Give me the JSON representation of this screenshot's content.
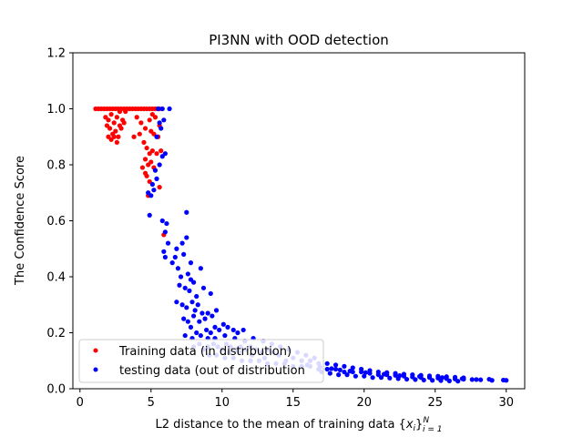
{
  "chart_data": {
    "type": "scatter",
    "title": "PI3NN with OOD detection",
    "xlabel": "L2 distance to the mean of training data {x_i}_{i=1}^N",
    "xlabel_parts": {
      "prefix": "L2 distance to the mean of training data {",
      "var": "x",
      "var_sub": "i",
      "close": "}",
      "sup": "N",
      "sub": "i = 1"
    },
    "ylabel": "The Confidence Score",
    "xlim": [
      -0.5,
      31.3
    ],
    "ylim": [
      0.0,
      1.2
    ],
    "xticks": [
      0,
      5,
      10,
      15,
      20,
      25,
      30
    ],
    "yticks": [
      0.0,
      0.2,
      0.4,
      0.6,
      0.8,
      1.0,
      1.2
    ],
    "xtick_labels": [
      "0",
      "5",
      "10",
      "15",
      "20",
      "25",
      "30"
    ],
    "ytick_labels": [
      "0.0",
      "0.2",
      "0.4",
      "0.6",
      "0.8",
      "1.0",
      "1.2"
    ],
    "grid": false,
    "legend_position": "lower-left",
    "series": [
      {
        "name": "Training data (in distribution)",
        "color": "#ff0000",
        "points": [
          [
            1.1,
            1.0
          ],
          [
            1.3,
            1.0
          ],
          [
            1.5,
            1.0
          ],
          [
            1.7,
            1.0
          ],
          [
            1.9,
            1.0
          ],
          [
            2.1,
            1.0
          ],
          [
            2.3,
            1.0
          ],
          [
            2.5,
            1.0
          ],
          [
            2.7,
            1.0
          ],
          [
            2.9,
            1.0
          ],
          [
            3.1,
            1.0
          ],
          [
            3.3,
            1.0
          ],
          [
            3.5,
            1.0
          ],
          [
            3.7,
            1.0
          ],
          [
            3.9,
            1.0
          ],
          [
            4.1,
            1.0
          ],
          [
            4.3,
            1.0
          ],
          [
            4.5,
            1.0
          ],
          [
            4.7,
            1.0
          ],
          [
            4.9,
            1.0
          ],
          [
            5.1,
            1.0
          ],
          [
            5.3,
            1.0
          ],
          [
            5.5,
            1.0
          ],
          [
            5.6,
            1.0
          ],
          [
            1.8,
            0.97
          ],
          [
            2.0,
            0.96
          ],
          [
            2.2,
            0.98
          ],
          [
            2.4,
            0.95
          ],
          [
            2.6,
            0.97
          ],
          [
            2.8,
            0.94
          ],
          [
            3.0,
            0.96
          ],
          [
            2.1,
            0.93
          ],
          [
            2.3,
            0.91
          ],
          [
            2.5,
            0.92
          ],
          [
            2.7,
            0.9
          ],
          [
            2.9,
            0.93
          ],
          [
            2.2,
            0.89
          ],
          [
            2.6,
            0.88
          ],
          [
            2.4,
            0.9
          ],
          [
            3.1,
            0.95
          ],
          [
            3.2,
            0.99
          ],
          [
            2.0,
            0.9
          ],
          [
            1.9,
            0.94
          ],
          [
            2.8,
            0.99
          ],
          [
            4.0,
            0.97
          ],
          [
            4.3,
            0.95
          ],
          [
            4.6,
            0.93
          ],
          [
            4.9,
            0.96
          ],
          [
            5.1,
            0.98
          ],
          [
            5.3,
            0.97
          ],
          [
            4.2,
            0.91
          ],
          [
            3.8,
            0.9
          ],
          [
            5.0,
            0.92
          ],
          [
            4.5,
            0.88
          ],
          [
            4.7,
            0.86
          ],
          [
            4.9,
            0.84
          ],
          [
            5.1,
            0.85
          ],
          [
            5.4,
            0.84
          ],
          [
            4.6,
            0.82
          ],
          [
            4.8,
            0.8
          ],
          [
            5.0,
            0.81
          ],
          [
            4.4,
            0.79
          ],
          [
            4.6,
            0.77
          ],
          [
            4.7,
            0.76
          ],
          [
            4.9,
            0.74
          ],
          [
            5.2,
            0.79
          ],
          [
            5.5,
            0.9
          ],
          [
            5.6,
            0.94
          ],
          [
            5.2,
            0.91
          ],
          [
            5.7,
            0.85
          ],
          [
            4.8,
            0.69
          ],
          [
            5.6,
            0.72
          ],
          [
            5.9,
            0.55
          ]
        ]
      },
      {
        "name": "testing data (out of distribution",
        "color": "#0000ff",
        "points": [
          [
            5.5,
            1.0
          ],
          [
            5.8,
            1.0
          ],
          [
            6.3,
            1.0
          ],
          [
            5.6,
            0.95
          ],
          [
            5.9,
            0.96
          ],
          [
            5.4,
            0.9
          ],
          [
            5.7,
            0.93
          ],
          [
            5.8,
            0.83
          ],
          [
            6.0,
            0.84
          ],
          [
            5.6,
            0.8
          ],
          [
            5.3,
            0.78
          ],
          [
            5.4,
            0.75
          ],
          [
            5.1,
            0.73
          ],
          [
            5.2,
            0.71
          ],
          [
            5.0,
            0.69
          ],
          [
            4.8,
            0.7
          ],
          [
            4.9,
            0.62
          ],
          [
            5.8,
            0.6
          ],
          [
            6.0,
            0.56
          ],
          [
            6.1,
            0.59
          ],
          [
            6.2,
            0.52
          ],
          [
            5.9,
            0.49
          ],
          [
            6.0,
            0.47
          ],
          [
            6.5,
            0.45
          ],
          [
            6.7,
            0.47
          ],
          [
            6.8,
            0.5
          ],
          [
            7.2,
            0.52
          ],
          [
            7.5,
            0.54
          ],
          [
            6.9,
            0.43
          ],
          [
            7.1,
            0.4
          ],
          [
            7.3,
            0.48
          ],
          [
            7.6,
            0.41
          ],
          [
            7.8,
            0.39
          ],
          [
            7.0,
            0.37
          ],
          [
            7.4,
            0.36
          ],
          [
            7.7,
            0.35
          ],
          [
            8.0,
            0.38
          ],
          [
            8.2,
            0.33
          ],
          [
            7.5,
            0.63
          ],
          [
            7.8,
            0.45
          ],
          [
            8.5,
            0.43
          ],
          [
            8.7,
            0.36
          ],
          [
            9.2,
            0.34
          ],
          [
            6.8,
            0.31
          ],
          [
            7.2,
            0.3
          ],
          [
            7.5,
            0.29
          ],
          [
            7.9,
            0.31
          ],
          [
            8.1,
            0.28
          ],
          [
            8.3,
            0.3
          ],
          [
            8.6,
            0.27
          ],
          [
            7.3,
            0.25
          ],
          [
            7.6,
            0.24
          ],
          [
            7.8,
            0.22
          ],
          [
            8.0,
            0.26
          ],
          [
            8.4,
            0.24
          ],
          [
            8.8,
            0.25
          ],
          [
            9.0,
            0.27
          ],
          [
            9.3,
            0.26
          ],
          [
            9.6,
            0.28
          ],
          [
            7.4,
            0.19
          ],
          [
            7.9,
            0.18
          ],
          [
            8.2,
            0.2
          ],
          [
            8.5,
            0.19
          ],
          [
            8.9,
            0.21
          ],
          [
            9.2,
            0.2
          ],
          [
            9.5,
            0.22
          ],
          [
            9.8,
            0.21
          ],
          [
            10.1,
            0.23
          ],
          [
            10.4,
            0.22
          ],
          [
            10.8,
            0.21
          ],
          [
            11.1,
            0.2
          ],
          [
            11.5,
            0.21
          ],
          [
            8.0,
            0.15
          ],
          [
            8.4,
            0.16
          ],
          [
            8.7,
            0.14
          ],
          [
            9.0,
            0.15
          ],
          [
            9.4,
            0.16
          ],
          [
            9.7,
            0.15
          ],
          [
            10.0,
            0.14
          ],
          [
            10.3,
            0.16
          ],
          [
            10.6,
            0.15
          ],
          [
            11.0,
            0.14
          ],
          [
            11.3,
            0.15
          ],
          [
            11.7,
            0.14
          ],
          [
            12.0,
            0.15
          ],
          [
            12.4,
            0.14
          ],
          [
            12.8,
            0.13
          ],
          [
            13.2,
            0.14
          ],
          [
            13.6,
            0.13
          ],
          [
            14.0,
            0.12
          ],
          [
            9.0,
            0.18
          ],
          [
            9.5,
            0.18
          ],
          [
            10.2,
            0.19
          ],
          [
            10.9,
            0.18
          ],
          [
            11.6,
            0.17
          ],
          [
            12.2,
            0.18
          ],
          [
            12.9,
            0.17
          ],
          [
            13.5,
            0.16
          ],
          [
            14.1,
            0.15
          ],
          [
            14.7,
            0.14
          ],
          [
            15.3,
            0.13
          ],
          [
            15.9,
            0.12
          ],
          [
            16.5,
            0.11
          ],
          [
            9.1,
            0.12
          ],
          [
            9.6,
            0.12
          ],
          [
            10.2,
            0.11
          ],
          [
            10.8,
            0.11
          ],
          [
            11.4,
            0.1
          ],
          [
            12.0,
            0.1
          ],
          [
            12.6,
            0.1
          ],
          [
            13.2,
            0.09
          ],
          [
            13.8,
            0.09
          ],
          [
            14.4,
            0.09
          ],
          [
            15.0,
            0.08
          ],
          [
            15.6,
            0.08
          ],
          [
            16.2,
            0.08
          ],
          [
            16.8,
            0.07
          ],
          [
            17.4,
            0.07
          ],
          [
            18.0,
            0.07
          ],
          [
            18.6,
            0.06
          ],
          [
            19.2,
            0.06
          ],
          [
            19.8,
            0.06
          ],
          [
            20.4,
            0.055
          ],
          [
            21.0,
            0.05
          ],
          [
            21.6,
            0.05
          ],
          [
            22.2,
            0.048
          ],
          [
            22.8,
            0.045
          ],
          [
            23.4,
            0.042
          ],
          [
            24.0,
            0.04
          ],
          [
            24.6,
            0.04
          ],
          [
            25.2,
            0.038
          ],
          [
            25.8,
            0.036
          ],
          [
            26.4,
            0.035
          ],
          [
            27.0,
            0.034
          ],
          [
            27.6,
            0.033
          ],
          [
            28.2,
            0.032
          ],
          [
            15.0,
            0.11
          ],
          [
            15.6,
            0.1
          ],
          [
            16.2,
            0.1
          ],
          [
            16.8,
            0.09
          ],
          [
            17.4,
            0.09
          ],
          [
            18.0,
            0.085
          ],
          [
            18.6,
            0.08
          ],
          [
            19.2,
            0.075
          ],
          [
            19.8,
            0.07
          ],
          [
            20.4,
            0.065
          ],
          [
            21.0,
            0.06
          ],
          [
            21.6,
            0.058
          ],
          [
            22.2,
            0.055
          ],
          [
            22.8,
            0.052
          ],
          [
            23.4,
            0.05
          ],
          [
            24.0,
            0.048
          ],
          [
            24.6,
            0.046
          ],
          [
            25.2,
            0.045
          ],
          [
            25.8,
            0.043
          ],
          [
            26.4,
            0.041
          ],
          [
            27.0,
            0.039
          ],
          [
            17.0,
            0.06
          ],
          [
            17.6,
            0.055
          ],
          [
            18.2,
            0.05
          ],
          [
            18.8,
            0.05
          ],
          [
            19.4,
            0.045
          ],
          [
            20.0,
            0.045
          ],
          [
            20.6,
            0.04
          ],
          [
            21.2,
            0.04
          ],
          [
            21.8,
            0.038
          ],
          [
            22.4,
            0.036
          ],
          [
            23.0,
            0.034
          ],
          [
            23.6,
            0.033
          ],
          [
            24.2,
            0.031
          ],
          [
            24.8,
            0.03
          ],
          [
            25.4,
            0.029
          ],
          [
            26.0,
            0.028
          ],
          [
            26.6,
            0.027
          ],
          [
            29.0,
            0.03
          ],
          [
            29.8,
            0.031
          ],
          [
            30.0,
            0.03
          ],
          [
            28.8,
            0.034
          ],
          [
            27.9,
            0.033
          ],
          [
            26.9,
            0.036
          ],
          [
            25.5,
            0.04
          ],
          [
            23.9,
            0.044
          ],
          [
            22.5,
            0.047
          ],
          [
            21.4,
            0.052
          ],
          [
            20.1,
            0.058
          ],
          [
            19.0,
            0.063
          ],
          [
            18.3,
            0.067
          ],
          [
            17.7,
            0.072
          ],
          [
            16.9,
            0.078
          ],
          [
            16.0,
            0.085
          ],
          [
            14.5,
            0.1
          ],
          [
            13.0,
            0.11
          ],
          [
            12.1,
            0.12
          ],
          [
            11.2,
            0.13
          ],
          [
            10.5,
            0.13
          ]
        ]
      }
    ]
  }
}
